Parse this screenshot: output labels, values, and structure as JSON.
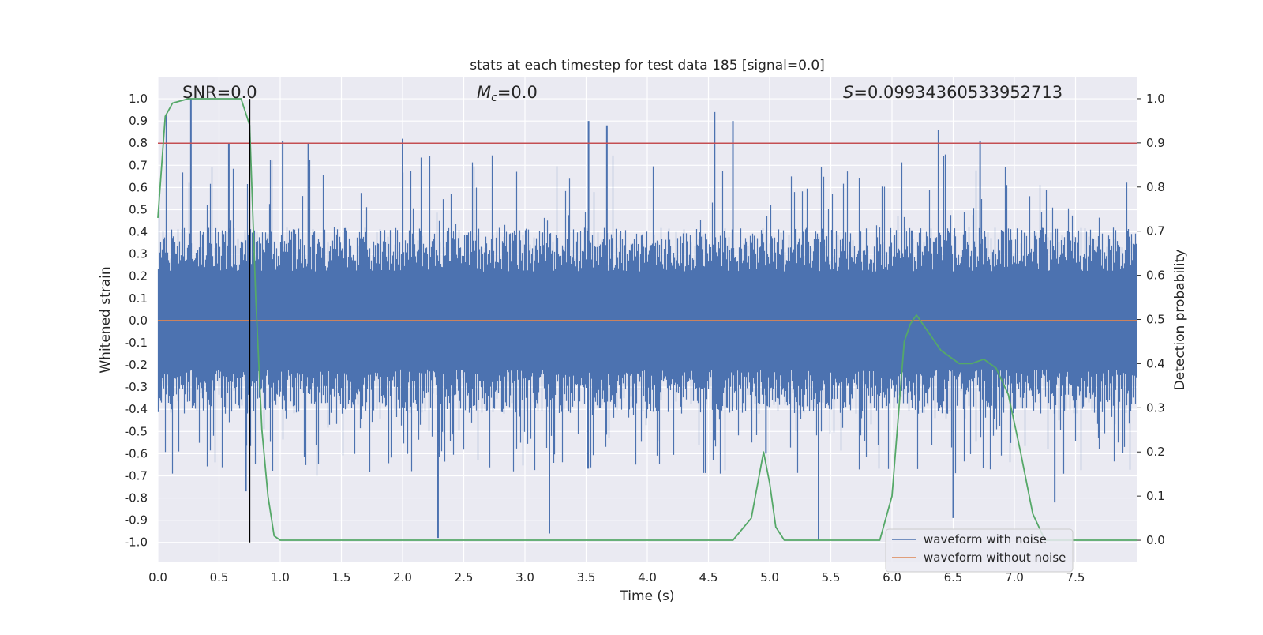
{
  "chart_data": {
    "type": "line",
    "title": "stats at each timestep for test data 185 [signal=0.0]",
    "xlabel": "Time (s)",
    "ylabel_left": "Whitened strain",
    "ylabel_right": "Detection probability",
    "xlim": [
      0.0,
      8.0
    ],
    "ylim_left": [
      -1.09,
      1.1
    ],
    "ylim_right": [
      -0.05,
      1.05
    ],
    "x_ticks": [
      "0.0",
      "0.5",
      "1.0",
      "1.5",
      "2.0",
      "2.5",
      "3.0",
      "3.5",
      "4.0",
      "4.5",
      "5.0",
      "5.5",
      "6.0",
      "6.5",
      "7.0",
      "7.5"
    ],
    "y_ticks_left": [
      "1.0",
      "0.9",
      "0.8",
      "0.7",
      "0.6",
      "0.5",
      "0.4",
      "0.3",
      "0.2",
      "0.1",
      "0.0",
      "-0.1",
      "-0.2",
      "-0.3",
      "-0.4",
      "-0.5",
      "-0.6",
      "-0.7",
      "-0.8",
      "-0.9",
      "-1.0"
    ],
    "y_ticks_right": [
      "1.0",
      "0.9",
      "0.8",
      "0.7",
      "0.6",
      "0.5",
      "0.4",
      "0.3",
      "0.2",
      "0.1",
      "0.0"
    ],
    "grid": true,
    "legend_position": "bottom-right",
    "annotations": {
      "snr": "SNR=0.0",
      "mc_symbol": "M",
      "mc_sub": "c",
      "mc_value": "=0.0",
      "s_symbol": "S",
      "s_value": "=0.09934360533952713"
    },
    "threshold_line": {
      "y": 0.8,
      "axis": "left",
      "color": "#c44e52"
    },
    "marker_line": {
      "x": 0.75,
      "color": "#000000"
    },
    "series": [
      {
        "name": "waveform with noise",
        "color": "#4c72b0",
        "axis": "left",
        "kind": "noise",
        "typical_band": [
          -0.4,
          0.4
        ],
        "notable_peaks": [
          {
            "x": 0.07,
            "y": 0.93
          },
          {
            "x": 0.27,
            "y": 1.0
          },
          {
            "x": 0.58,
            "y": 0.8
          },
          {
            "x": 1.02,
            "y": 0.81
          },
          {
            "x": 1.23,
            "y": 0.8
          },
          {
            "x": 2.0,
            "y": 0.82
          },
          {
            "x": 3.52,
            "y": 0.9
          },
          {
            "x": 3.67,
            "y": 0.88
          },
          {
            "x": 4.55,
            "y": 0.94
          },
          {
            "x": 4.7,
            "y": 0.9
          },
          {
            "x": 6.38,
            "y": 0.86
          },
          {
            "x": 6.72,
            "y": 0.81
          }
        ],
        "notable_troughs": [
          {
            "x": 0.72,
            "y": -0.77
          },
          {
            "x": 2.29,
            "y": -0.98
          },
          {
            "x": 3.2,
            "y": -0.96
          },
          {
            "x": 4.97,
            "y": -0.6
          },
          {
            "x": 5.4,
            "y": -0.99
          },
          {
            "x": 6.5,
            "y": -0.89
          },
          {
            "x": 7.33,
            "y": -0.82
          }
        ]
      },
      {
        "name": "waveform without noise",
        "color": "#dd8452",
        "axis": "left",
        "kind": "line",
        "x": [
          0.0,
          8.0
        ],
        "y": [
          0.0,
          0.0
        ]
      },
      {
        "name": "",
        "color": "#55a868",
        "axis": "right",
        "kind": "line",
        "x": [
          0.0,
          0.06,
          0.12,
          0.25,
          0.5,
          0.68,
          0.75,
          0.8,
          0.85,
          0.9,
          0.95,
          1.0,
          1.5,
          2.0,
          3.0,
          4.0,
          4.7,
          4.85,
          4.95,
          5.0,
          5.05,
          5.12,
          5.3,
          5.9,
          6.0,
          6.1,
          6.15,
          6.2,
          6.3,
          6.4,
          6.55,
          6.65,
          6.75,
          6.85,
          6.95,
          7.05,
          7.15,
          7.25,
          8.0
        ],
        "y": [
          0.73,
          0.96,
          0.99,
          1.0,
          1.0,
          1.0,
          0.94,
          0.55,
          0.25,
          0.1,
          0.01,
          0.0,
          0.0,
          0.0,
          0.0,
          0.0,
          0.0,
          0.05,
          0.2,
          0.13,
          0.03,
          0.0,
          0.0,
          0.0,
          0.1,
          0.45,
          0.49,
          0.51,
          0.47,
          0.43,
          0.4,
          0.4,
          0.41,
          0.39,
          0.33,
          0.2,
          0.06,
          0.0,
          0.0
        ]
      }
    ]
  }
}
